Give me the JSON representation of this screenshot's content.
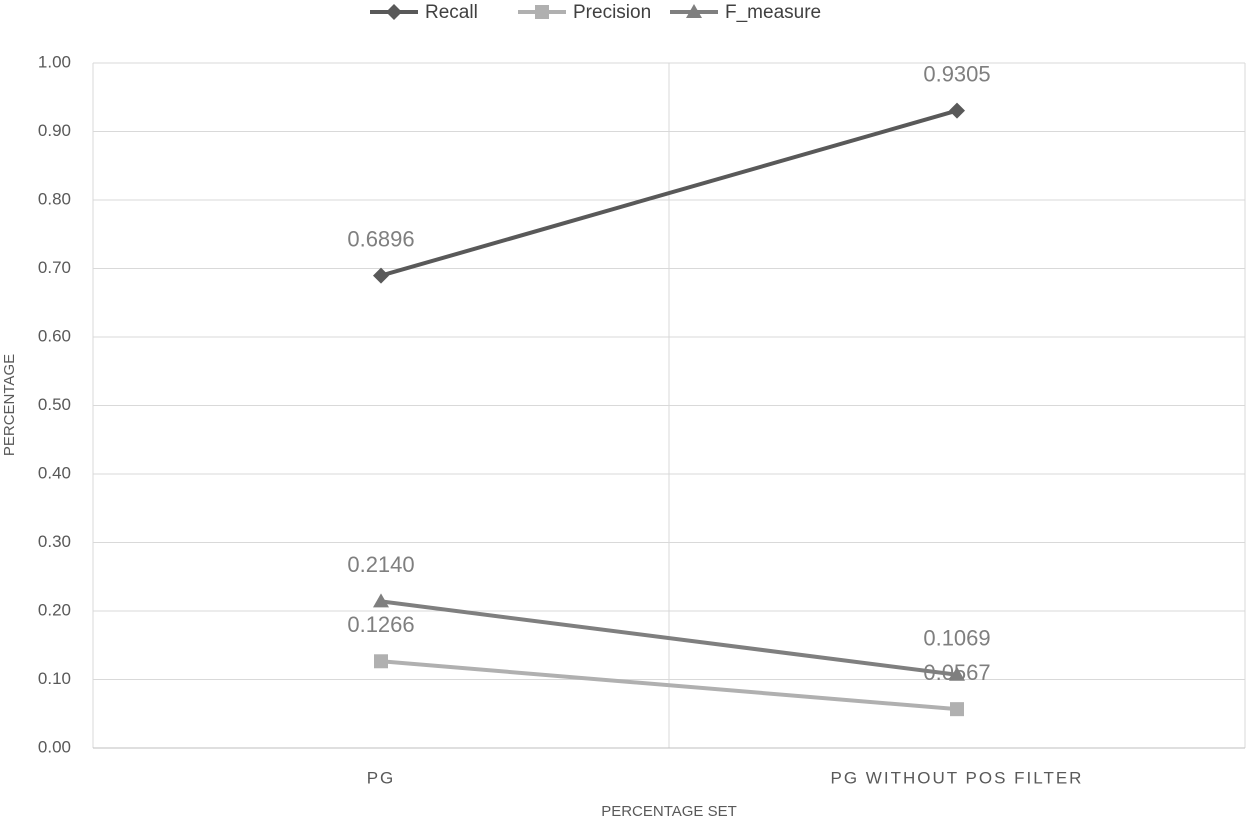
{
  "chart_data": {
    "type": "line",
    "categories": [
      "PG",
      "PG WITHOUT POS FILTER"
    ],
    "series": [
      {
        "name": "Recall",
        "color": "#595959",
        "marker": "diamond",
        "values": [
          0.6896,
          0.9305
        ],
        "value_labels": [
          "0.6896",
          "0.9305"
        ]
      },
      {
        "name": "Precision",
        "color": "#b0b0b0",
        "marker": "square",
        "values": [
          0.1266,
          0.0567
        ],
        "value_labels": [
          "0.1266",
          "0.0567"
        ]
      },
      {
        "name": "F_measure",
        "color": "#7f7f7f",
        "marker": "triangle",
        "values": [
          0.214,
          0.1069
        ],
        "value_labels": [
          "0.2140",
          "0.1069"
        ]
      }
    ],
    "y_label": "PERCENTAGE",
    "x_label": "PERCENTAGE SET",
    "ylim": [
      0,
      1
    ],
    "yticks": [
      {
        "value": 0,
        "label": "0.00"
      },
      {
        "value": 0.1,
        "label": "0.10"
      },
      {
        "value": 0.2,
        "label": "0.20"
      },
      {
        "value": 0.3,
        "label": "0.30"
      },
      {
        "value": 0.4,
        "label": "0.40"
      },
      {
        "value": 0.5,
        "label": "0.50"
      },
      {
        "value": 0.6,
        "label": "0.60"
      },
      {
        "value": 0.7,
        "label": "0.70"
      },
      {
        "value": 0.8,
        "label": "0.80"
      },
      {
        "value": 0.9,
        "label": "0.90"
      },
      {
        "value": 1,
        "label": "1.00"
      }
    ],
    "grid": true,
    "legend": "top"
  }
}
